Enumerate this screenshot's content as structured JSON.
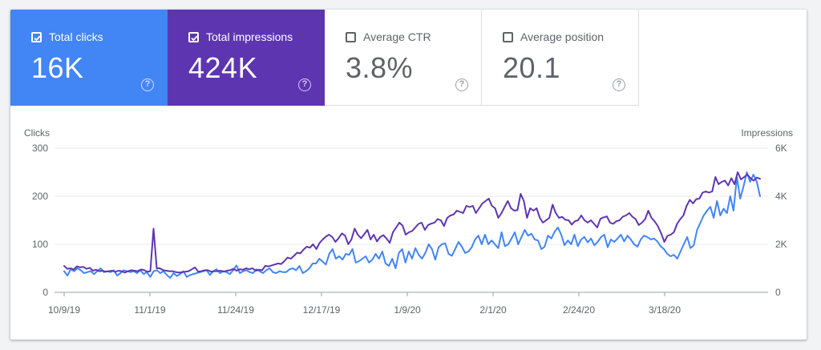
{
  "metrics": [
    {
      "label": "Total clicks",
      "value": "16K",
      "active": true,
      "color": "#4285f4",
      "help": "?"
    },
    {
      "label": "Total impressions",
      "value": "424K",
      "active": true,
      "color": "#5e35b1",
      "help": "?"
    },
    {
      "label": "Average CTR",
      "value": "3.8%",
      "active": false,
      "color": "#ffffff",
      "help": "?"
    },
    {
      "label": "Average position",
      "value": "20.1",
      "active": false,
      "color": "#ffffff",
      "help": "?"
    }
  ],
  "chart_data": {
    "type": "line",
    "left_axis": {
      "label": "Clicks",
      "ticks": [
        "300",
        "200",
        "100",
        "0"
      ],
      "ylim": [
        0,
        300
      ]
    },
    "right_axis": {
      "label": "Impressions",
      "ticks": [
        "6K",
        "4K",
        "2K",
        "0"
      ],
      "ylim": [
        0,
        6000
      ]
    },
    "x_ticks": [
      "10/9/19",
      "11/1/19",
      "11/24/19",
      "12/17/19",
      "1/9/20",
      "2/1/20",
      "2/24/20",
      "3/18/20"
    ],
    "grid": true,
    "series": [
      {
        "axis": "left",
        "color": "#4285f4",
        "values": [
          44,
          35,
          48,
          44,
          50,
          46,
          40,
          42,
          44,
          38,
          44,
          50,
          42,
          44,
          42,
          46,
          35,
          40,
          46,
          44,
          42,
          44,
          40,
          46,
          38,
          42,
          32,
          44,
          46,
          40,
          44,
          36,
          30,
          40,
          34,
          38,
          44,
          32,
          36,
          38,
          40,
          42,
          44,
          46,
          36,
          44,
          48,
          40,
          44,
          42,
          38,
          46,
          56,
          40,
          44,
          46,
          42,
          40,
          48,
          44,
          40,
          46,
          50,
          42,
          40,
          44,
          42,
          42,
          48,
          50,
          46,
          55,
          40,
          44,
          50,
          60,
          60,
          70,
          64,
          58,
          80,
          90,
          70,
          75,
          68,
          80,
          78,
          90,
          62,
          65,
          70,
          75,
          62,
          68,
          80,
          70,
          85,
          60,
          55,
          70,
          50,
          82,
          90,
          62,
          85,
          70,
          92,
          78,
          70,
          82,
          100,
          90,
          68,
          94,
          100,
          102,
          80,
          76,
          90,
          105,
          95,
          82,
          85,
          94,
          110,
          118,
          100,
          120,
          100,
          108,
          100,
          92,
          125,
          96,
          100,
          112,
          125,
          100,
          115,
          130,
          118,
          122,
          110,
          108,
          90,
          95,
          118,
          112,
          126,
          135,
          120,
          98,
          108,
          100,
          120,
          96,
          110,
          115,
          104,
          112,
          98,
          105,
          115,
          120,
          94,
          110,
          105,
          112,
          120,
          106,
          118,
          110,
          100,
          95,
          110,
          118,
          115,
          110,
          112,
          106,
          96,
          90,
          80,
          75,
          78,
          70,
          85,
          100,
          115,
          92,
          98,
          130,
          145,
          160,
          170,
          178,
          155,
          190,
          160,
          174,
          165,
          200,
          170,
          240,
          195,
          220,
          250,
          230,
          245,
          230,
          200
        ]
      },
      {
        "axis": "right",
        "color": "#5e35b1",
        "values": [
          1100,
          980,
          1000,
          950,
          1080,
          1040,
          1060,
          980,
          1020,
          900,
          940,
          880,
          900,
          860,
          880,
          900,
          850,
          900,
          880,
          820,
          880,
          920,
          900,
          880,
          950,
          930,
          860,
          880,
          2650,
          1000,
          1000,
          920,
          900,
          880,
          880,
          840,
          820,
          840,
          860,
          880,
          960,
          1040,
          860,
          880,
          920,
          920,
          860,
          880,
          880,
          900,
          860,
          900,
          920,
          980,
          900,
          960,
          940,
          1000,
          960,
          1000,
          900,
          940,
          920,
          1100,
          1080,
          1120,
          1160,
          1200,
          1180,
          1300,
          1450,
          1400,
          1520,
          1650,
          1620,
          1780,
          1900,
          1860,
          2000,
          1800,
          2050,
          2200,
          2320,
          2400,
          2300,
          2100,
          2260,
          2450,
          2360,
          2000,
          2200,
          2650,
          2400,
          2250,
          2420,
          2600,
          2200,
          2400,
          2120,
          2300,
          2380,
          2240,
          2060,
          2500,
          2700,
          2900,
          2780,
          2400,
          2500,
          2550,
          2700,
          2850,
          2900,
          2600,
          2800,
          2860,
          2900,
          3050,
          3000,
          2760,
          3100,
          3200,
          3240,
          3400,
          3350,
          3300,
          3600,
          3550,
          3600,
          3300,
          3500,
          3700,
          3800,
          3900,
          3600,
          3500,
          3100,
          3300,
          3560,
          3800,
          3500,
          3400,
          3420,
          4100,
          3800,
          3100,
          3500,
          3400,
          3500,
          3100,
          2900,
          3000,
          3100,
          3650,
          3300,
          3100,
          3140,
          3020,
          3000,
          2820,
          2960,
          3000,
          3200,
          3000,
          2900,
          3000,
          2850,
          2700,
          3060,
          3120,
          3160,
          2900,
          2850,
          2960,
          3000,
          3150,
          3200,
          3300,
          3150,
          3050,
          2800,
          2900,
          3050,
          3400,
          3100,
          2950,
          2750,
          2460,
          2100,
          2350,
          2400,
          2500,
          2850,
          3050,
          3200,
          3600,
          3850,
          3700,
          3880,
          3900,
          4150,
          4200,
          4150,
          4200,
          4800,
          4500,
          4600,
          4650,
          4450,
          4750,
          4500,
          5000,
          4700,
          4800,
          4900,
          4750,
          4650,
          4780,
          4720
        ]
      }
    ]
  }
}
